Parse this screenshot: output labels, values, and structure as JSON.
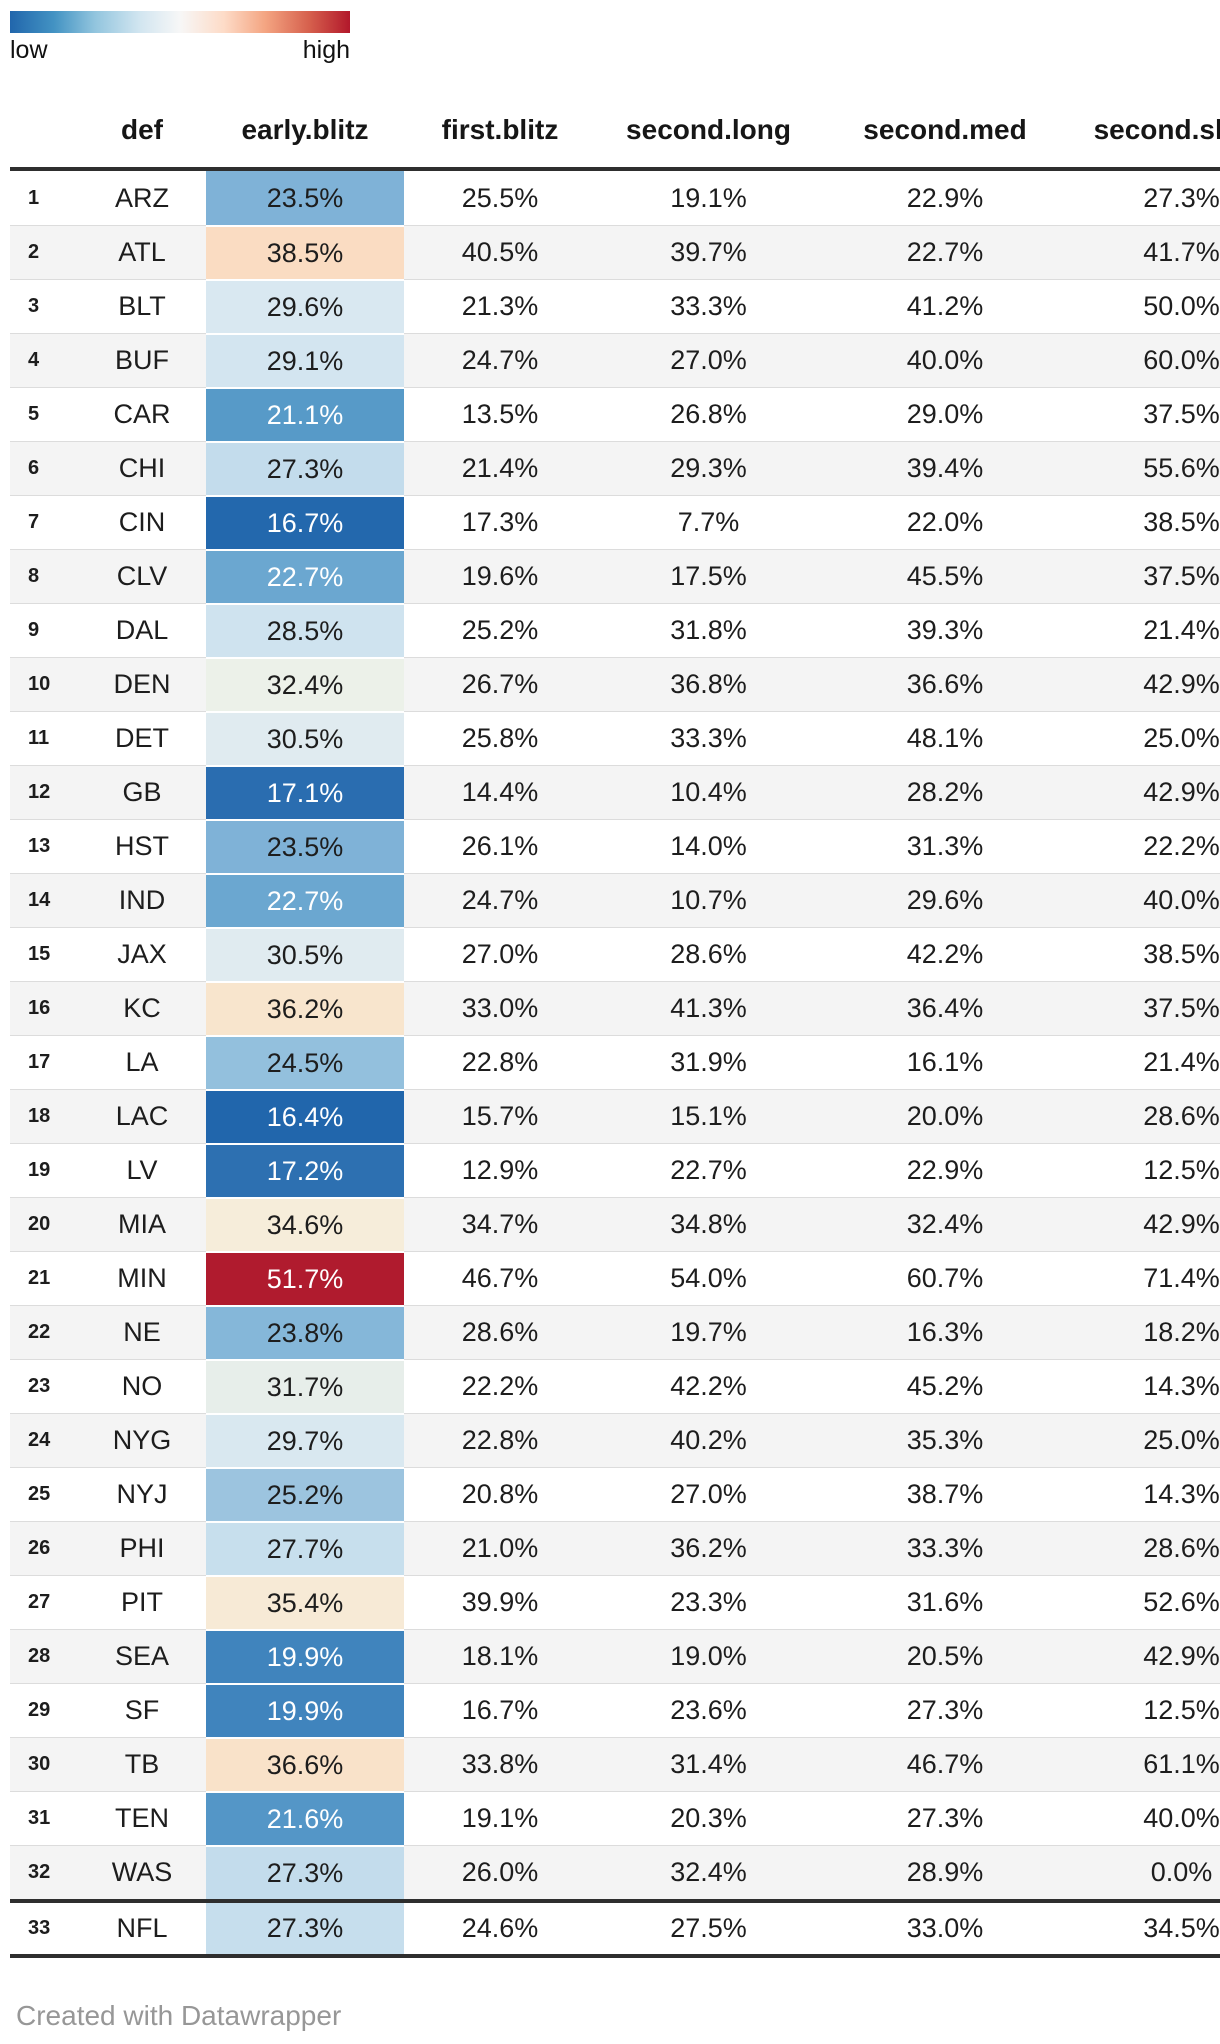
{
  "legend": {
    "low_label": "low",
    "high_label": "high",
    "gradient_stops": [
      "#2166ac",
      "#4393c3",
      "#92c5de",
      "#d1e5f0",
      "#f7f7f7",
      "#fddbc7",
      "#f4a582",
      "#d6604d",
      "#b2182b"
    ]
  },
  "table": {
    "header": [
      "def",
      "early.blitz",
      "first.blitz",
      "second.long",
      "second.med",
      "second.short"
    ],
    "heat_dark_text": "#1d1d1d",
    "heat_light_text": "#ffffff",
    "rows": [
      {
        "rank": "1",
        "def": "ARZ",
        "early": {
          "v": "23.5%",
          "bg": "#7fb2d7",
          "fg": "#1d1d1d"
        },
        "first": "25.5%",
        "long": "19.1%",
        "med": "22.9%",
        "short": "27.3%"
      },
      {
        "rank": "2",
        "def": "ATL",
        "early": {
          "v": "38.5%",
          "bg": "#fadcc2",
          "fg": "#1d1d1d"
        },
        "first": "40.5%",
        "long": "39.7%",
        "med": "22.7%",
        "short": "41.7%"
      },
      {
        "rank": "3",
        "def": "BLT",
        "early": {
          "v": "29.6%",
          "bg": "#d9e8f1",
          "fg": "#1d1d1d"
        },
        "first": "21.3%",
        "long": "33.3%",
        "med": "41.2%",
        "short": "50.0%"
      },
      {
        "rank": "4",
        "def": "BUF",
        "early": {
          "v": "29.1%",
          "bg": "#d3e5f0",
          "fg": "#1d1d1d"
        },
        "first": "24.7%",
        "long": "27.0%",
        "med": "40.0%",
        "short": "60.0%"
      },
      {
        "rank": "5",
        "def": "CAR",
        "early": {
          "v": "21.1%",
          "bg": "#579ac8",
          "fg": "#ffffff"
        },
        "first": "13.5%",
        "long": "26.8%",
        "med": "29.0%",
        "short": "37.5%"
      },
      {
        "rank": "6",
        "def": "CHI",
        "early": {
          "v": "27.3%",
          "bg": "#c3dcec",
          "fg": "#1d1d1d"
        },
        "first": "21.4%",
        "long": "29.3%",
        "med": "39.4%",
        "short": "55.6%"
      },
      {
        "rank": "7",
        "def": "CIN",
        "early": {
          "v": "16.7%",
          "bg": "#2368ad",
          "fg": "#ffffff"
        },
        "first": "17.3%",
        "long": "7.7%",
        "med": "22.0%",
        "short": "38.5%"
      },
      {
        "rank": "8",
        "def": "CLV",
        "early": {
          "v": "22.7%",
          "bg": "#6ba7d0",
          "fg": "#ffffff"
        },
        "first": "19.6%",
        "long": "17.5%",
        "med": "45.5%",
        "short": "37.5%"
      },
      {
        "rank": "9",
        "def": "DAL",
        "early": {
          "v": "28.5%",
          "bg": "#cfe3ef",
          "fg": "#1d1d1d"
        },
        "first": "25.2%",
        "long": "31.8%",
        "med": "39.3%",
        "short": "21.4%"
      },
      {
        "rank": "10",
        "def": "DEN",
        "early": {
          "v": "32.4%",
          "bg": "#ecf1e9",
          "fg": "#1d1d1d"
        },
        "first": "26.7%",
        "long": "36.8%",
        "med": "36.6%",
        "short": "42.9%"
      },
      {
        "rank": "11",
        "def": "DET",
        "early": {
          "v": "30.5%",
          "bg": "#e0ebf0",
          "fg": "#1d1d1d"
        },
        "first": "25.8%",
        "long": "33.3%",
        "med": "48.1%",
        "short": "25.0%"
      },
      {
        "rank": "12",
        "def": "GB",
        "early": {
          "v": "17.1%",
          "bg": "#2a6db0",
          "fg": "#ffffff"
        },
        "first": "14.4%",
        "long": "10.4%",
        "med": "28.2%",
        "short": "42.9%"
      },
      {
        "rank": "13",
        "def": "HST",
        "early": {
          "v": "23.5%",
          "bg": "#7fb2d7",
          "fg": "#1d1d1d"
        },
        "first": "26.1%",
        "long": "14.0%",
        "med": "31.3%",
        "short": "22.2%"
      },
      {
        "rank": "14",
        "def": "IND",
        "early": {
          "v": "22.7%",
          "bg": "#6ba7d0",
          "fg": "#ffffff"
        },
        "first": "24.7%",
        "long": "10.7%",
        "med": "29.6%",
        "short": "40.0%"
      },
      {
        "rank": "15",
        "def": "JAX",
        "early": {
          "v": "30.5%",
          "bg": "#e0ebf0",
          "fg": "#1d1d1d"
        },
        "first": "27.0%",
        "long": "28.6%",
        "med": "42.2%",
        "short": "38.5%"
      },
      {
        "rank": "16",
        "def": "KC",
        "early": {
          "v": "36.2%",
          "bg": "#f8e5cd",
          "fg": "#1d1d1d"
        },
        "first": "33.0%",
        "long": "41.3%",
        "med": "36.4%",
        "short": "37.5%"
      },
      {
        "rank": "17",
        "def": "LA",
        "early": {
          "v": "24.5%",
          "bg": "#93c0dd",
          "fg": "#1d1d1d"
        },
        "first": "22.8%",
        "long": "31.9%",
        "med": "16.1%",
        "short": "21.4%"
      },
      {
        "rank": "18",
        "def": "LAC",
        "early": {
          "v": "16.4%",
          "bg": "#2166ac",
          "fg": "#ffffff"
        },
        "first": "15.7%",
        "long": "15.1%",
        "med": "20.0%",
        "short": "28.6%"
      },
      {
        "rank": "19",
        "def": "LV",
        "early": {
          "v": "17.2%",
          "bg": "#2d70b1",
          "fg": "#ffffff"
        },
        "first": "12.9%",
        "long": "22.7%",
        "med": "22.9%",
        "short": "12.5%"
      },
      {
        "rank": "20",
        "def": "MIA",
        "early": {
          "v": "34.6%",
          "bg": "#f6edda",
          "fg": "#1d1d1d"
        },
        "first": "34.7%",
        "long": "34.8%",
        "med": "32.4%",
        "short": "42.9%"
      },
      {
        "rank": "21",
        "def": "MIN",
        "early": {
          "v": "51.7%",
          "bg": "#b01b2e",
          "fg": "#ffffff"
        },
        "first": "46.7%",
        "long": "54.0%",
        "med": "60.7%",
        "short": "71.4%"
      },
      {
        "rank": "22",
        "def": "NE",
        "early": {
          "v": "23.8%",
          "bg": "#85b7d9",
          "fg": "#1d1d1d"
        },
        "first": "28.6%",
        "long": "19.7%",
        "med": "16.3%",
        "short": "18.2%"
      },
      {
        "rank": "23",
        "def": "NO",
        "early": {
          "v": "31.7%",
          "bg": "#e7eeea",
          "fg": "#1d1d1d"
        },
        "first": "22.2%",
        "long": "42.2%",
        "med": "45.2%",
        "short": "14.3%"
      },
      {
        "rank": "24",
        "def": "NYG",
        "early": {
          "v": "29.7%",
          "bg": "#d9e8f0",
          "fg": "#1d1d1d"
        },
        "first": "22.8%",
        "long": "40.2%",
        "med": "35.3%",
        "short": "25.0%"
      },
      {
        "rank": "25",
        "def": "NYJ",
        "early": {
          "v": "25.2%",
          "bg": "#9cc4df",
          "fg": "#1d1d1d"
        },
        "first": "20.8%",
        "long": "27.0%",
        "med": "38.7%",
        "short": "14.3%"
      },
      {
        "rank": "26",
        "def": "PHI",
        "early": {
          "v": "27.7%",
          "bg": "#c7dfed",
          "fg": "#1d1d1d"
        },
        "first": "21.0%",
        "long": "36.2%",
        "med": "33.3%",
        "short": "28.6%"
      },
      {
        "rank": "27",
        "def": "PIT",
        "early": {
          "v": "35.4%",
          "bg": "#f7ead6",
          "fg": "#1d1d1d"
        },
        "first": "39.9%",
        "long": "23.3%",
        "med": "31.6%",
        "short": "52.6%"
      },
      {
        "rank": "28",
        "def": "SEA",
        "early": {
          "v": "19.9%",
          "bg": "#4084bd",
          "fg": "#ffffff"
        },
        "first": "18.1%",
        "long": "19.0%",
        "med": "20.5%",
        "short": "42.9%"
      },
      {
        "rank": "29",
        "def": "SF",
        "early": {
          "v": "19.9%",
          "bg": "#4084bd",
          "fg": "#ffffff"
        },
        "first": "16.7%",
        "long": "23.6%",
        "med": "27.3%",
        "short": "12.5%"
      },
      {
        "rank": "30",
        "def": "TB",
        "early": {
          "v": "36.6%",
          "bg": "#f9e2c9",
          "fg": "#1d1d1d"
        },
        "first": "33.8%",
        "long": "31.4%",
        "med": "46.7%",
        "short": "61.1%"
      },
      {
        "rank": "31",
        "def": "TEN",
        "early": {
          "v": "21.6%",
          "bg": "#5496c7",
          "fg": "#ffffff"
        },
        "first": "19.1%",
        "long": "20.3%",
        "med": "27.3%",
        "short": "40.0%"
      },
      {
        "rank": "32",
        "def": "WAS",
        "early": {
          "v": "27.3%",
          "bg": "#c3dcec",
          "fg": "#1d1d1d"
        },
        "first": "26.0%",
        "long": "32.4%",
        "med": "28.9%",
        "short": "0.0%"
      },
      {
        "rank": "33",
        "def": "NFL",
        "early": {
          "v": "27.3%",
          "bg": "#c6deed",
          "fg": "#1d1d1d"
        },
        "first": "24.6%",
        "long": "27.5%",
        "med": "33.0%",
        "short": "34.5%",
        "summary": true
      }
    ]
  },
  "footer": {
    "credit": "Created with Datawrapper"
  },
  "chart_data": {
    "type": "table",
    "columns": [
      "def",
      "early.blitz",
      "first.blitz",
      "second.long",
      "second.med",
      "second.short"
    ],
    "rows": [
      [
        "ARZ",
        23.5,
        25.5,
        19.1,
        22.9,
        27.3
      ],
      [
        "ATL",
        38.5,
        40.5,
        39.7,
        22.7,
        41.7
      ],
      [
        "BLT",
        29.6,
        21.3,
        33.3,
        41.2,
        50.0
      ],
      [
        "BUF",
        29.1,
        24.7,
        27.0,
        40.0,
        60.0
      ],
      [
        "CAR",
        21.1,
        13.5,
        26.8,
        29.0,
        37.5
      ],
      [
        "CHI",
        27.3,
        21.4,
        29.3,
        39.4,
        55.6
      ],
      [
        "CIN",
        16.7,
        17.3,
        7.7,
        22.0,
        38.5
      ],
      [
        "CLV",
        22.7,
        19.6,
        17.5,
        45.5,
        37.5
      ],
      [
        "DAL",
        28.5,
        25.2,
        31.8,
        39.3,
        21.4
      ],
      [
        "DEN",
        32.4,
        26.7,
        36.8,
        36.6,
        42.9
      ],
      [
        "DET",
        30.5,
        25.8,
        33.3,
        48.1,
        25.0
      ],
      [
        "GB",
        17.1,
        14.4,
        10.4,
        28.2,
        42.9
      ],
      [
        "HST",
        23.5,
        26.1,
        14.0,
        31.3,
        22.2
      ],
      [
        "IND",
        22.7,
        24.7,
        10.7,
        29.6,
        40.0
      ],
      [
        "JAX",
        30.5,
        27.0,
        28.6,
        42.2,
        38.5
      ],
      [
        "KC",
        36.2,
        33.0,
        41.3,
        36.4,
        37.5
      ],
      [
        "LA",
        24.5,
        22.8,
        31.9,
        16.1,
        21.4
      ],
      [
        "LAC",
        16.4,
        15.7,
        15.1,
        20.0,
        28.6
      ],
      [
        "LV",
        17.2,
        12.9,
        22.7,
        22.9,
        12.5
      ],
      [
        "MIA",
        34.6,
        34.7,
        34.8,
        32.4,
        42.9
      ],
      [
        "MIN",
        51.7,
        46.7,
        54.0,
        60.7,
        71.4
      ],
      [
        "NE",
        23.8,
        28.6,
        19.7,
        16.3,
        18.2
      ],
      [
        "NO",
        31.7,
        22.2,
        42.2,
        45.2,
        14.3
      ],
      [
        "NYG",
        29.7,
        22.8,
        40.2,
        35.3,
        25.0
      ],
      [
        "NYJ",
        25.2,
        20.8,
        27.0,
        38.7,
        14.3
      ],
      [
        "PHI",
        27.7,
        21.0,
        36.2,
        33.3,
        28.6
      ],
      [
        "PIT",
        35.4,
        39.9,
        23.3,
        31.6,
        52.6
      ],
      [
        "SEA",
        19.9,
        18.1,
        19.0,
        20.5,
        42.9
      ],
      [
        "SF",
        19.9,
        16.7,
        23.6,
        27.3,
        12.5
      ],
      [
        "TB",
        36.6,
        33.8,
        31.4,
        46.7,
        61.1
      ],
      [
        "TEN",
        21.6,
        19.1,
        20.3,
        27.3,
        40.0
      ],
      [
        "WAS",
        27.3,
        26.0,
        32.4,
        28.9,
        0.0
      ],
      [
        "NFL",
        27.3,
        24.6,
        27.5,
        33.0,
        34.5
      ]
    ],
    "heatmap_column": "early.blitz",
    "color_scale": {
      "type": "diverging",
      "low_color": "#2166ac",
      "mid_color": "#f7f7f7",
      "high_color": "#b2182b",
      "low_label": "low",
      "high_label": "high"
    },
    "legend_position": "top-left",
    "notes": "last column clipped at right edge of viewport"
  }
}
